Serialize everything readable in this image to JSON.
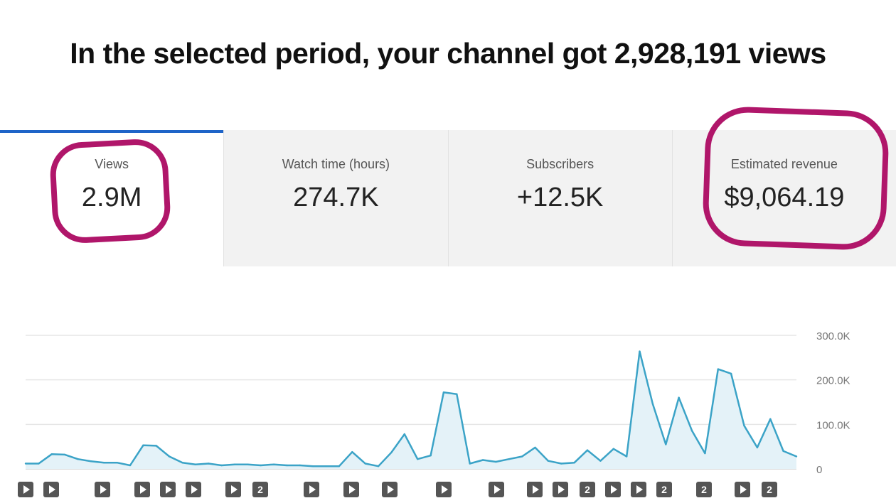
{
  "headline": "In the selected period, your channel got 2,928,191 views",
  "tabs": [
    {
      "label": "Views",
      "value": "2.9M",
      "active": true
    },
    {
      "label": "Watch time (hours)",
      "value": "274.7K",
      "active": false
    },
    {
      "label": "Subscribers",
      "value": "+12.5K",
      "active": false
    },
    {
      "label": "Estimated revenue",
      "value": "$9,064.19",
      "active": false
    }
  ],
  "colors": {
    "accent_tab": "#1e64c8",
    "line": "#3ba3c7",
    "fill": "#e4f2f8",
    "highlight_circle": "#b0166a"
  },
  "chart_data": {
    "type": "area",
    "title": "",
    "xlabel": "",
    "ylabel": "",
    "ylim": [
      0,
      300000
    ],
    "yticks": [
      0,
      100000,
      200000,
      300000
    ],
    "ytick_labels": [
      "0",
      "100.0K",
      "200.0K",
      "300.0K"
    ],
    "grid": true,
    "y_axis_side": "right",
    "series": [
      {
        "values": [
          12000,
          12000,
          33000,
          32000,
          22000,
          17000,
          14000,
          14000,
          8000,
          53000,
          52000,
          28000,
          14000,
          10000,
          12000,
          8000,
          10000,
          10000,
          8000,
          10000,
          8000,
          8000,
          6000,
          6000,
          6000,
          38000,
          12000,
          6000,
          37000,
          78000,
          22000,
          30000,
          172000,
          168000,
          12000,
          20000,
          16000,
          22000,
          28000,
          48000,
          18000,
          12000,
          14000,
          42000,
          18000,
          45000,
          28000,
          264000,
          146000,
          55000,
          160000,
          86000,
          35000,
          224000,
          214000,
          97000,
          48000,
          112000,
          40000,
          28000
        ]
      }
    ]
  },
  "markers": [
    {
      "kind": "play",
      "label": ""
    },
    {
      "kind": "play",
      "label": ""
    },
    {
      "kind": "play",
      "label": ""
    },
    {
      "kind": "play",
      "label": ""
    },
    {
      "kind": "play",
      "label": ""
    },
    {
      "kind": "play",
      "label": ""
    },
    {
      "kind": "play",
      "label": ""
    },
    {
      "kind": "count",
      "label": "2"
    },
    {
      "kind": "play",
      "label": ""
    },
    {
      "kind": "play",
      "label": ""
    },
    {
      "kind": "play",
      "label": ""
    },
    {
      "kind": "play",
      "label": ""
    },
    {
      "kind": "play",
      "label": ""
    },
    {
      "kind": "play",
      "label": ""
    },
    {
      "kind": "play",
      "label": ""
    },
    {
      "kind": "count",
      "label": "2"
    },
    {
      "kind": "play",
      "label": ""
    },
    {
      "kind": "play",
      "label": ""
    },
    {
      "kind": "count",
      "label": "2"
    },
    {
      "kind": "count",
      "label": "2"
    },
    {
      "kind": "play",
      "label": ""
    },
    {
      "kind": "count",
      "label": "2"
    }
  ]
}
